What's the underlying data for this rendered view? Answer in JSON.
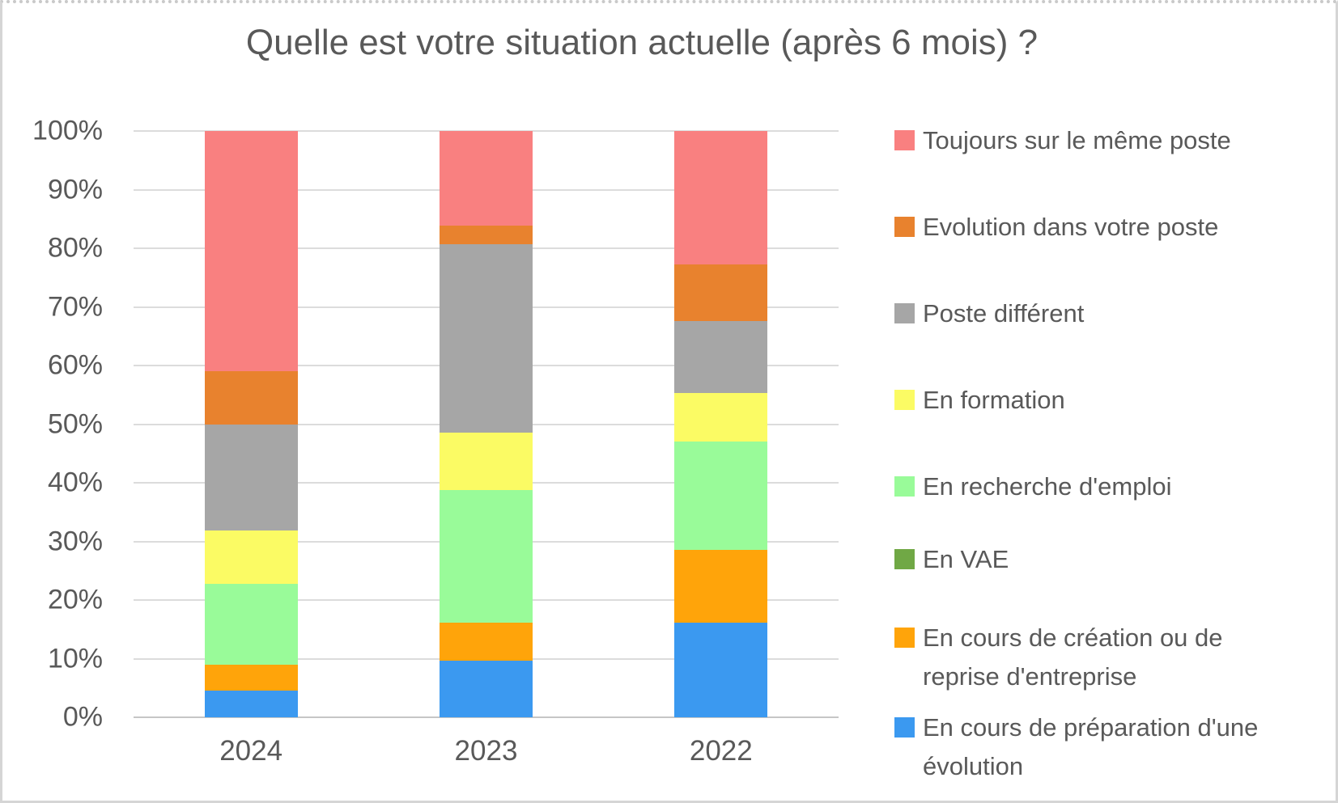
{
  "page": {
    "title": "Quelle est votre situation actuelle (après 6 mois) ?"
  },
  "chart_data": {
    "type": "bar",
    "variant": "100-percent-stacked-column",
    "title": "Quelle est votre situation actuelle (après 6 mois) ?",
    "categories": [
      "2024",
      "2023",
      "2022"
    ],
    "unit": "%",
    "series": [
      {
        "name": "En cours de préparation d'une évolution",
        "color": "#3B99F0",
        "values": [
          4.5,
          9.7,
          16.2
        ]
      },
      {
        "name": "En cours de création ou de reprise d'entreprise",
        "color": "#FFA40A",
        "values": [
          4.5,
          6.5,
          12.3
        ]
      },
      {
        "name": "En VAE",
        "color": "#70A845",
        "values": [
          0,
          0,
          0
        ]
      },
      {
        "name": "En recherche d'emploi",
        "color": "#99FB99",
        "values": [
          13.7,
          22.6,
          18.5
        ]
      },
      {
        "name": "En formation",
        "color": "#FBFB64",
        "values": [
          9.1,
          9.7,
          8.3
        ]
      },
      {
        "name": "Poste différent",
        "color": "#A6A6A6",
        "values": [
          18.2,
          32.2,
          12.3
        ]
      },
      {
        "name": "Evolution dans votre poste",
        "color": "#E8822E",
        "values": [
          9.1,
          3.2,
          9.7
        ]
      },
      {
        "name": "Toujours sur le même poste",
        "color": "#F98080",
        "values": [
          40.9,
          16.1,
          22.7
        ]
      }
    ],
    "y_axis": {
      "min": 0,
      "max": 100,
      "tick_step": 10,
      "tick_labels": [
        "0%",
        "10%",
        "20%",
        "30%",
        "40%",
        "50%",
        "60%",
        "70%",
        "80%",
        "90%",
        "100%"
      ],
      "grid": true
    },
    "legend": {
      "position": "right",
      "items_top_to_bottom": [
        "Toujours sur le même poste",
        "Evolution dans votre poste",
        "Poste différent",
        "En formation",
        "En recherche d'emploi",
        "En VAE",
        "En cours de création ou de reprise d'entreprise",
        "En cours de préparation d'une évolution"
      ]
    }
  },
  "colors": {
    "text": "#595959",
    "gridline": "#DCDCDC",
    "axis_line": "#C6C6C6",
    "background": "#FFFFFF",
    "border": "#D5D5D5"
  }
}
